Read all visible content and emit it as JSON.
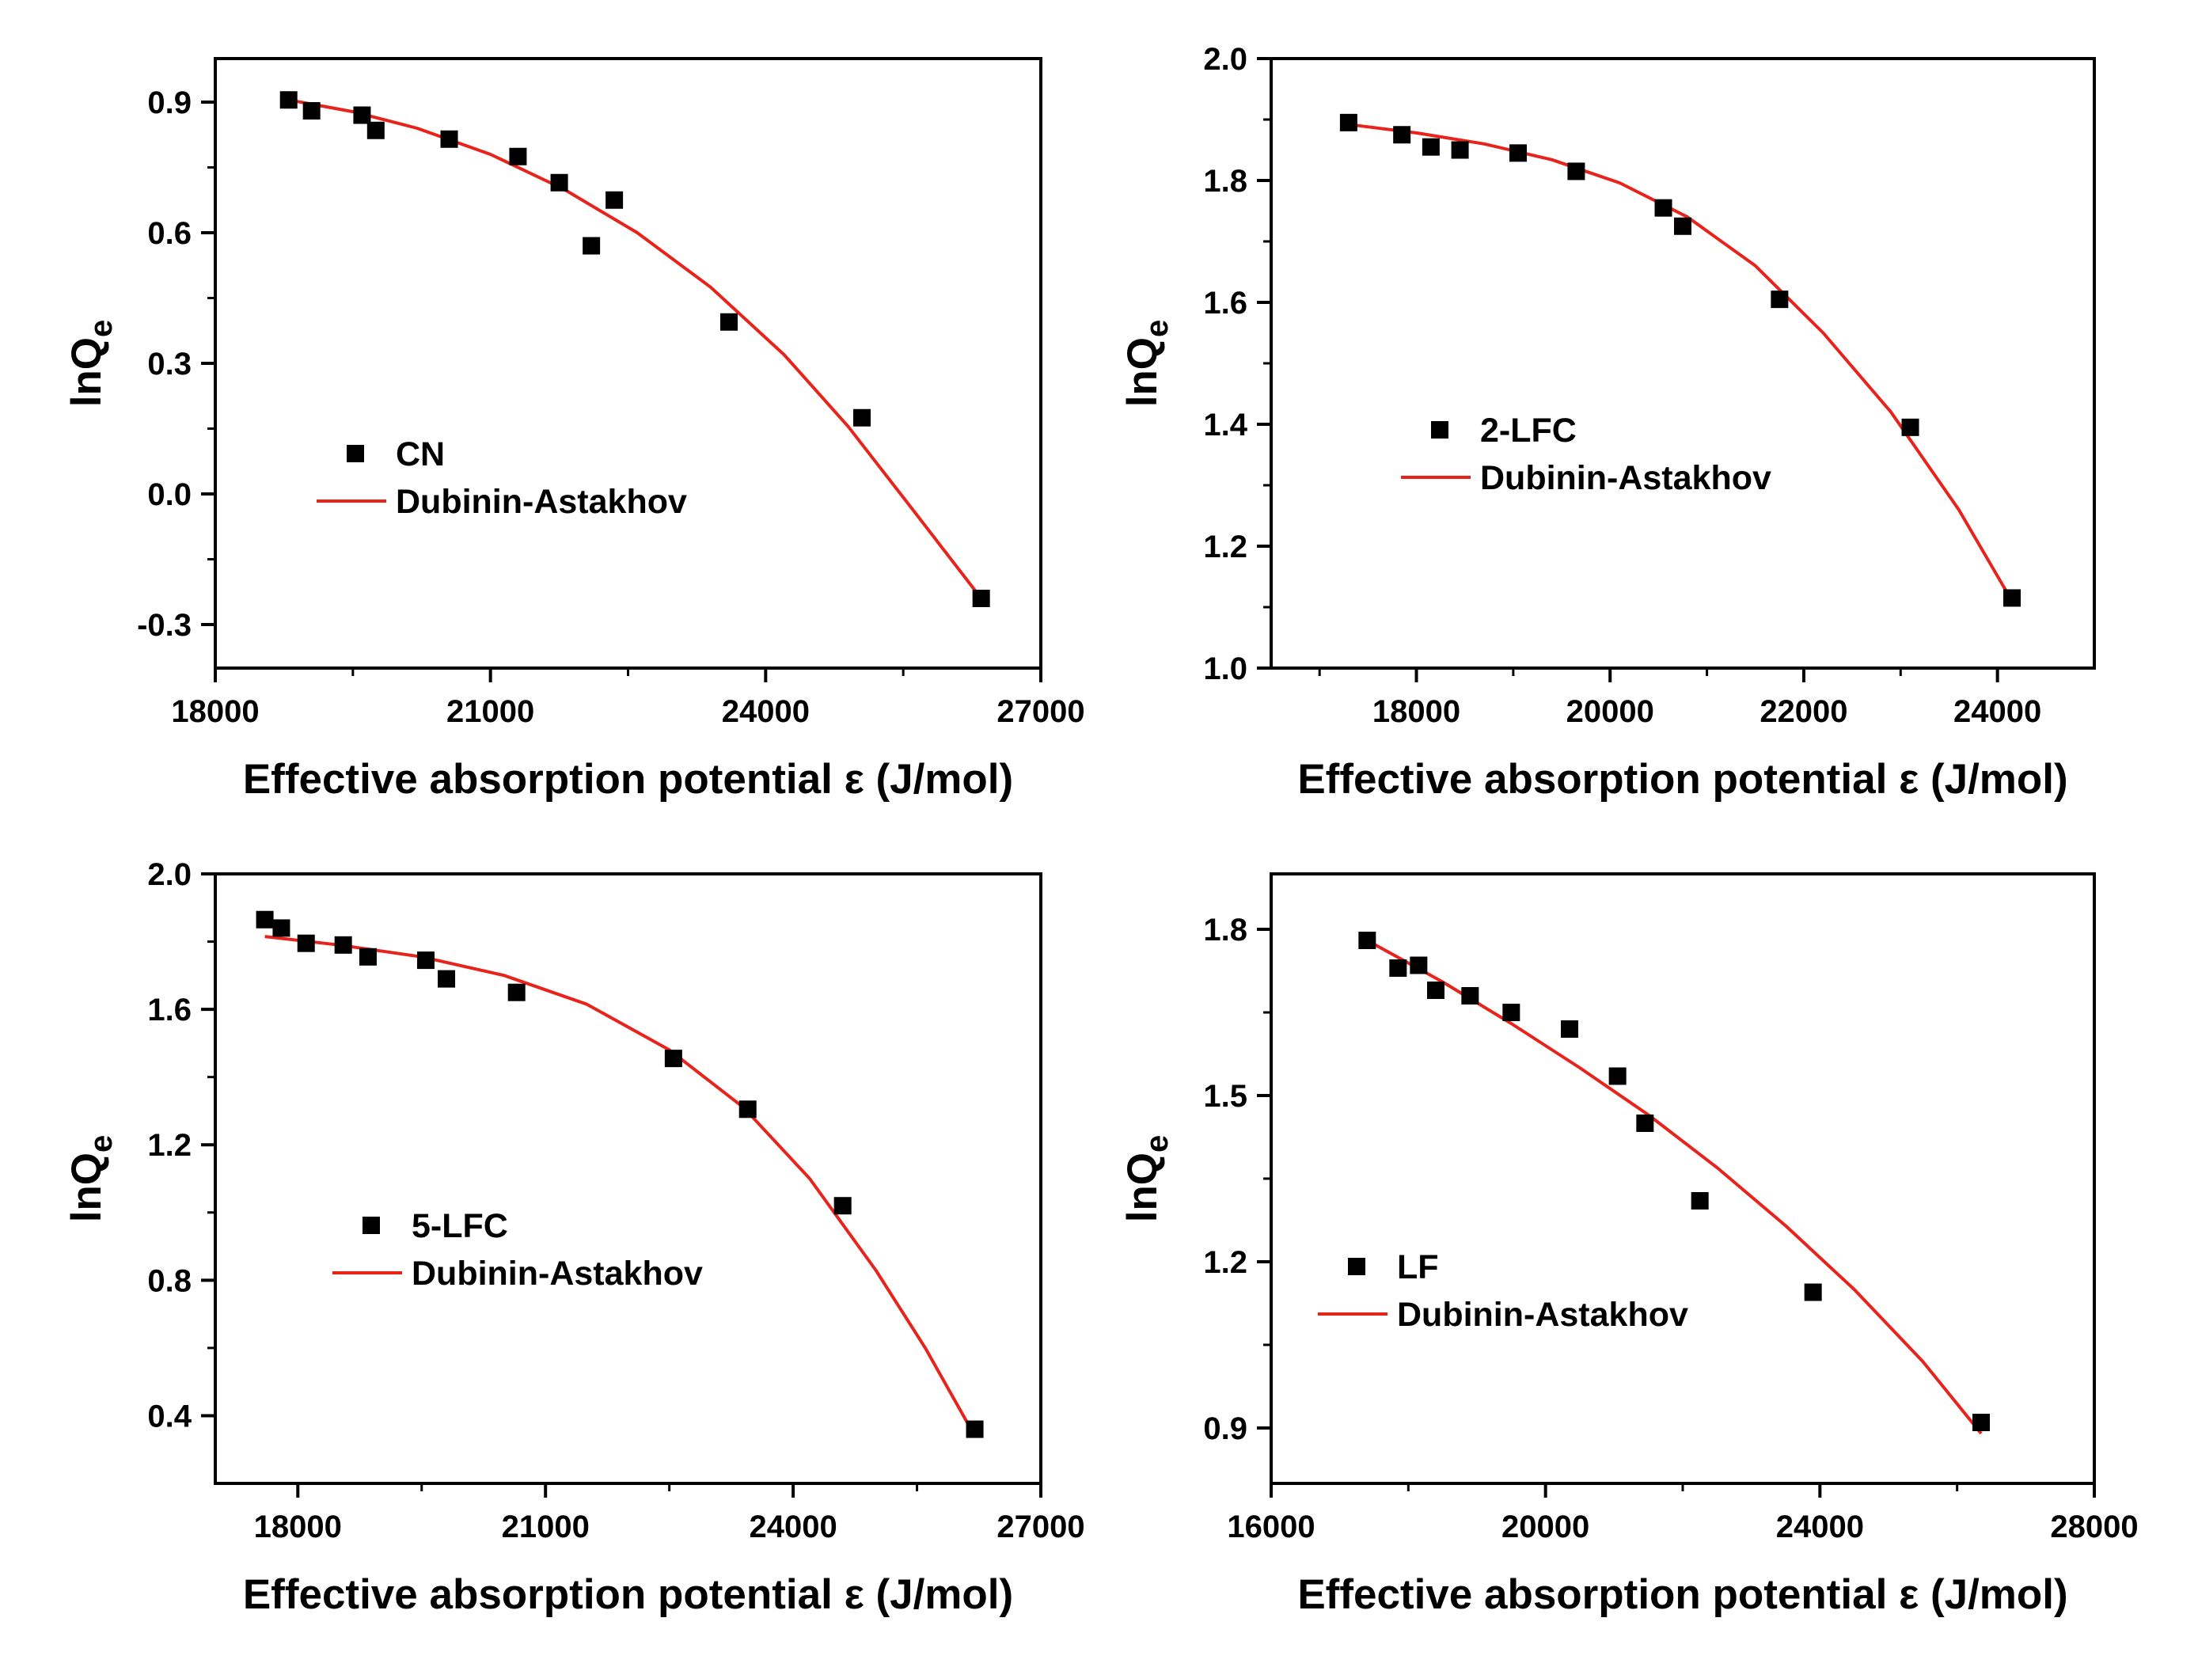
{
  "chart_data": [
    {
      "type": "scatter",
      "panel": "top-left",
      "xlabel": "Effective absorption potential ε (J/mol)",
      "ylabel": "lnQ",
      "ylabel_sub": "e",
      "xlim": [
        18000,
        27000
      ],
      "ylim": [
        -0.4,
        1.0
      ],
      "xticks": [
        18000,
        21000,
        24000,
        27000
      ],
      "yticks": [
        -0.3,
        0.0,
        0.3,
        0.6,
        0.9
      ],
      "ytick_decimals": 1,
      "legend_position": "middle-left",
      "colors": {
        "points": "#000000",
        "fit": "#e8231c"
      },
      "series": [
        {
          "name": "CN",
          "kind": "points",
          "x": [
            18800,
            19050,
            19600,
            19750,
            20550,
            21300,
            21750,
            22100,
            22350,
            23600,
            25050,
            26350
          ],
          "y": [
            0.905,
            0.88,
            0.87,
            0.835,
            0.815,
            0.775,
            0.715,
            0.57,
            0.675,
            0.395,
            0.175,
            -0.24
          ]
        },
        {
          "name": "Dubinin-Astakhov",
          "kind": "line",
          "x": [
            18800,
            19500,
            20200,
            21000,
            21800,
            22600,
            23400,
            24200,
            24900,
            25600,
            26350
          ],
          "y": [
            0.905,
            0.878,
            0.84,
            0.78,
            0.7,
            0.6,
            0.475,
            0.32,
            0.155,
            -0.035,
            -0.24
          ]
        }
      ]
    },
    {
      "type": "scatter",
      "panel": "top-right",
      "xlabel": "Effective absorption potential ε (J/mol)",
      "ylabel": "lnQ",
      "ylabel_sub": "e",
      "xlim": [
        16500,
        25000
      ],
      "ylim": [
        1.0,
        2.0
      ],
      "xticks": [
        18000,
        20000,
        22000,
        24000
      ],
      "yticks": [
        1.0,
        1.2,
        1.4,
        1.6,
        1.8,
        2.0
      ],
      "ytick_decimals": 1,
      "legend_position": "middle-left",
      "colors": {
        "points": "#000000",
        "fit": "#e8231c"
      },
      "series": [
        {
          "name": "2-LFC",
          "kind": "points",
          "x": [
            17300,
            17850,
            18150,
            18450,
            19050,
            19650,
            20550,
            20750,
            21750,
            23100,
            24150
          ],
          "y": [
            1.895,
            1.875,
            1.855,
            1.85,
            1.845,
            1.815,
            1.755,
            1.725,
            1.605,
            1.395,
            1.115
          ]
        },
        {
          "name": "Dubinin-Astakhov",
          "kind": "line",
          "x": [
            17300,
            18000,
            18700,
            19400,
            20100,
            20800,
            21500,
            22200,
            22900,
            23600,
            24150
          ],
          "y": [
            1.892,
            1.878,
            1.86,
            1.834,
            1.796,
            1.74,
            1.66,
            1.55,
            1.42,
            1.26,
            1.11
          ]
        }
      ]
    },
    {
      "type": "scatter",
      "panel": "bottom-left",
      "xlabel": "Effective absorption potential ε (J/mol)",
      "ylabel": "lnQ",
      "ylabel_sub": "e",
      "xlim": [
        17000,
        27000
      ],
      "ylim": [
        0.2,
        2.0
      ],
      "xticks": [
        18000,
        21000,
        24000,
        27000
      ],
      "yticks": [
        0.4,
        0.8,
        1.2,
        1.6,
        2.0
      ],
      "ytick_decimals": 1,
      "legend_position": "middle-left",
      "colors": {
        "points": "#000000",
        "fit": "#e8231c"
      },
      "series": [
        {
          "name": "5-LFC",
          "kind": "points",
          "x": [
            17600,
            17800,
            18100,
            18550,
            18850,
            19550,
            19800,
            20650,
            22550,
            23450,
            24600,
            26200
          ],
          "y": [
            1.865,
            1.84,
            1.795,
            1.79,
            1.755,
            1.745,
            1.69,
            1.65,
            1.455,
            1.305,
            1.02,
            0.36
          ]
        },
        {
          "name": "Dubinin-Astakhov",
          "kind": "line",
          "x": [
            17600,
            18500,
            19500,
            20500,
            21500,
            22500,
            23400,
            24200,
            25000,
            25600,
            26200
          ],
          "y": [
            1.815,
            1.79,
            1.755,
            1.7,
            1.615,
            1.48,
            1.31,
            1.1,
            0.83,
            0.6,
            0.34
          ]
        }
      ]
    },
    {
      "type": "scatter",
      "panel": "bottom-right",
      "xlabel": "Effective absorption potential ε (J/mol)",
      "ylabel": "lnQ",
      "ylabel_sub": "e",
      "xlim": [
        16000,
        28000
      ],
      "ylim": [
        0.8,
        1.9
      ],
      "xticks": [
        16000,
        20000,
        24000,
        28000
      ],
      "yticks": [
        0.9,
        1.2,
        1.5,
        1.8
      ],
      "ytick_decimals": 1,
      "legend_position": "bottom-left",
      "colors": {
        "points": "#000000",
        "fit": "#e8231c"
      },
      "series": [
        {
          "name": "LF",
          "kind": "points",
          "x": [
            17400,
            17850,
            18150,
            18400,
            18900,
            19500,
            20350,
            21050,
            21450,
            22250,
            23900,
            26350
          ],
          "y": [
            1.78,
            1.73,
            1.735,
            1.69,
            1.68,
            1.65,
            1.62,
            1.535,
            1.45,
            1.31,
            1.145,
            0.91
          ]
        },
        {
          "name": "Dubinin-Astakhov",
          "kind": "line",
          "x": [
            17400,
            18500,
            19500,
            20500,
            21500,
            22500,
            23500,
            24500,
            25500,
            26350
          ],
          "y": [
            1.78,
            1.705,
            1.63,
            1.55,
            1.465,
            1.37,
            1.265,
            1.15,
            1.02,
            0.89
          ]
        }
      ]
    }
  ]
}
